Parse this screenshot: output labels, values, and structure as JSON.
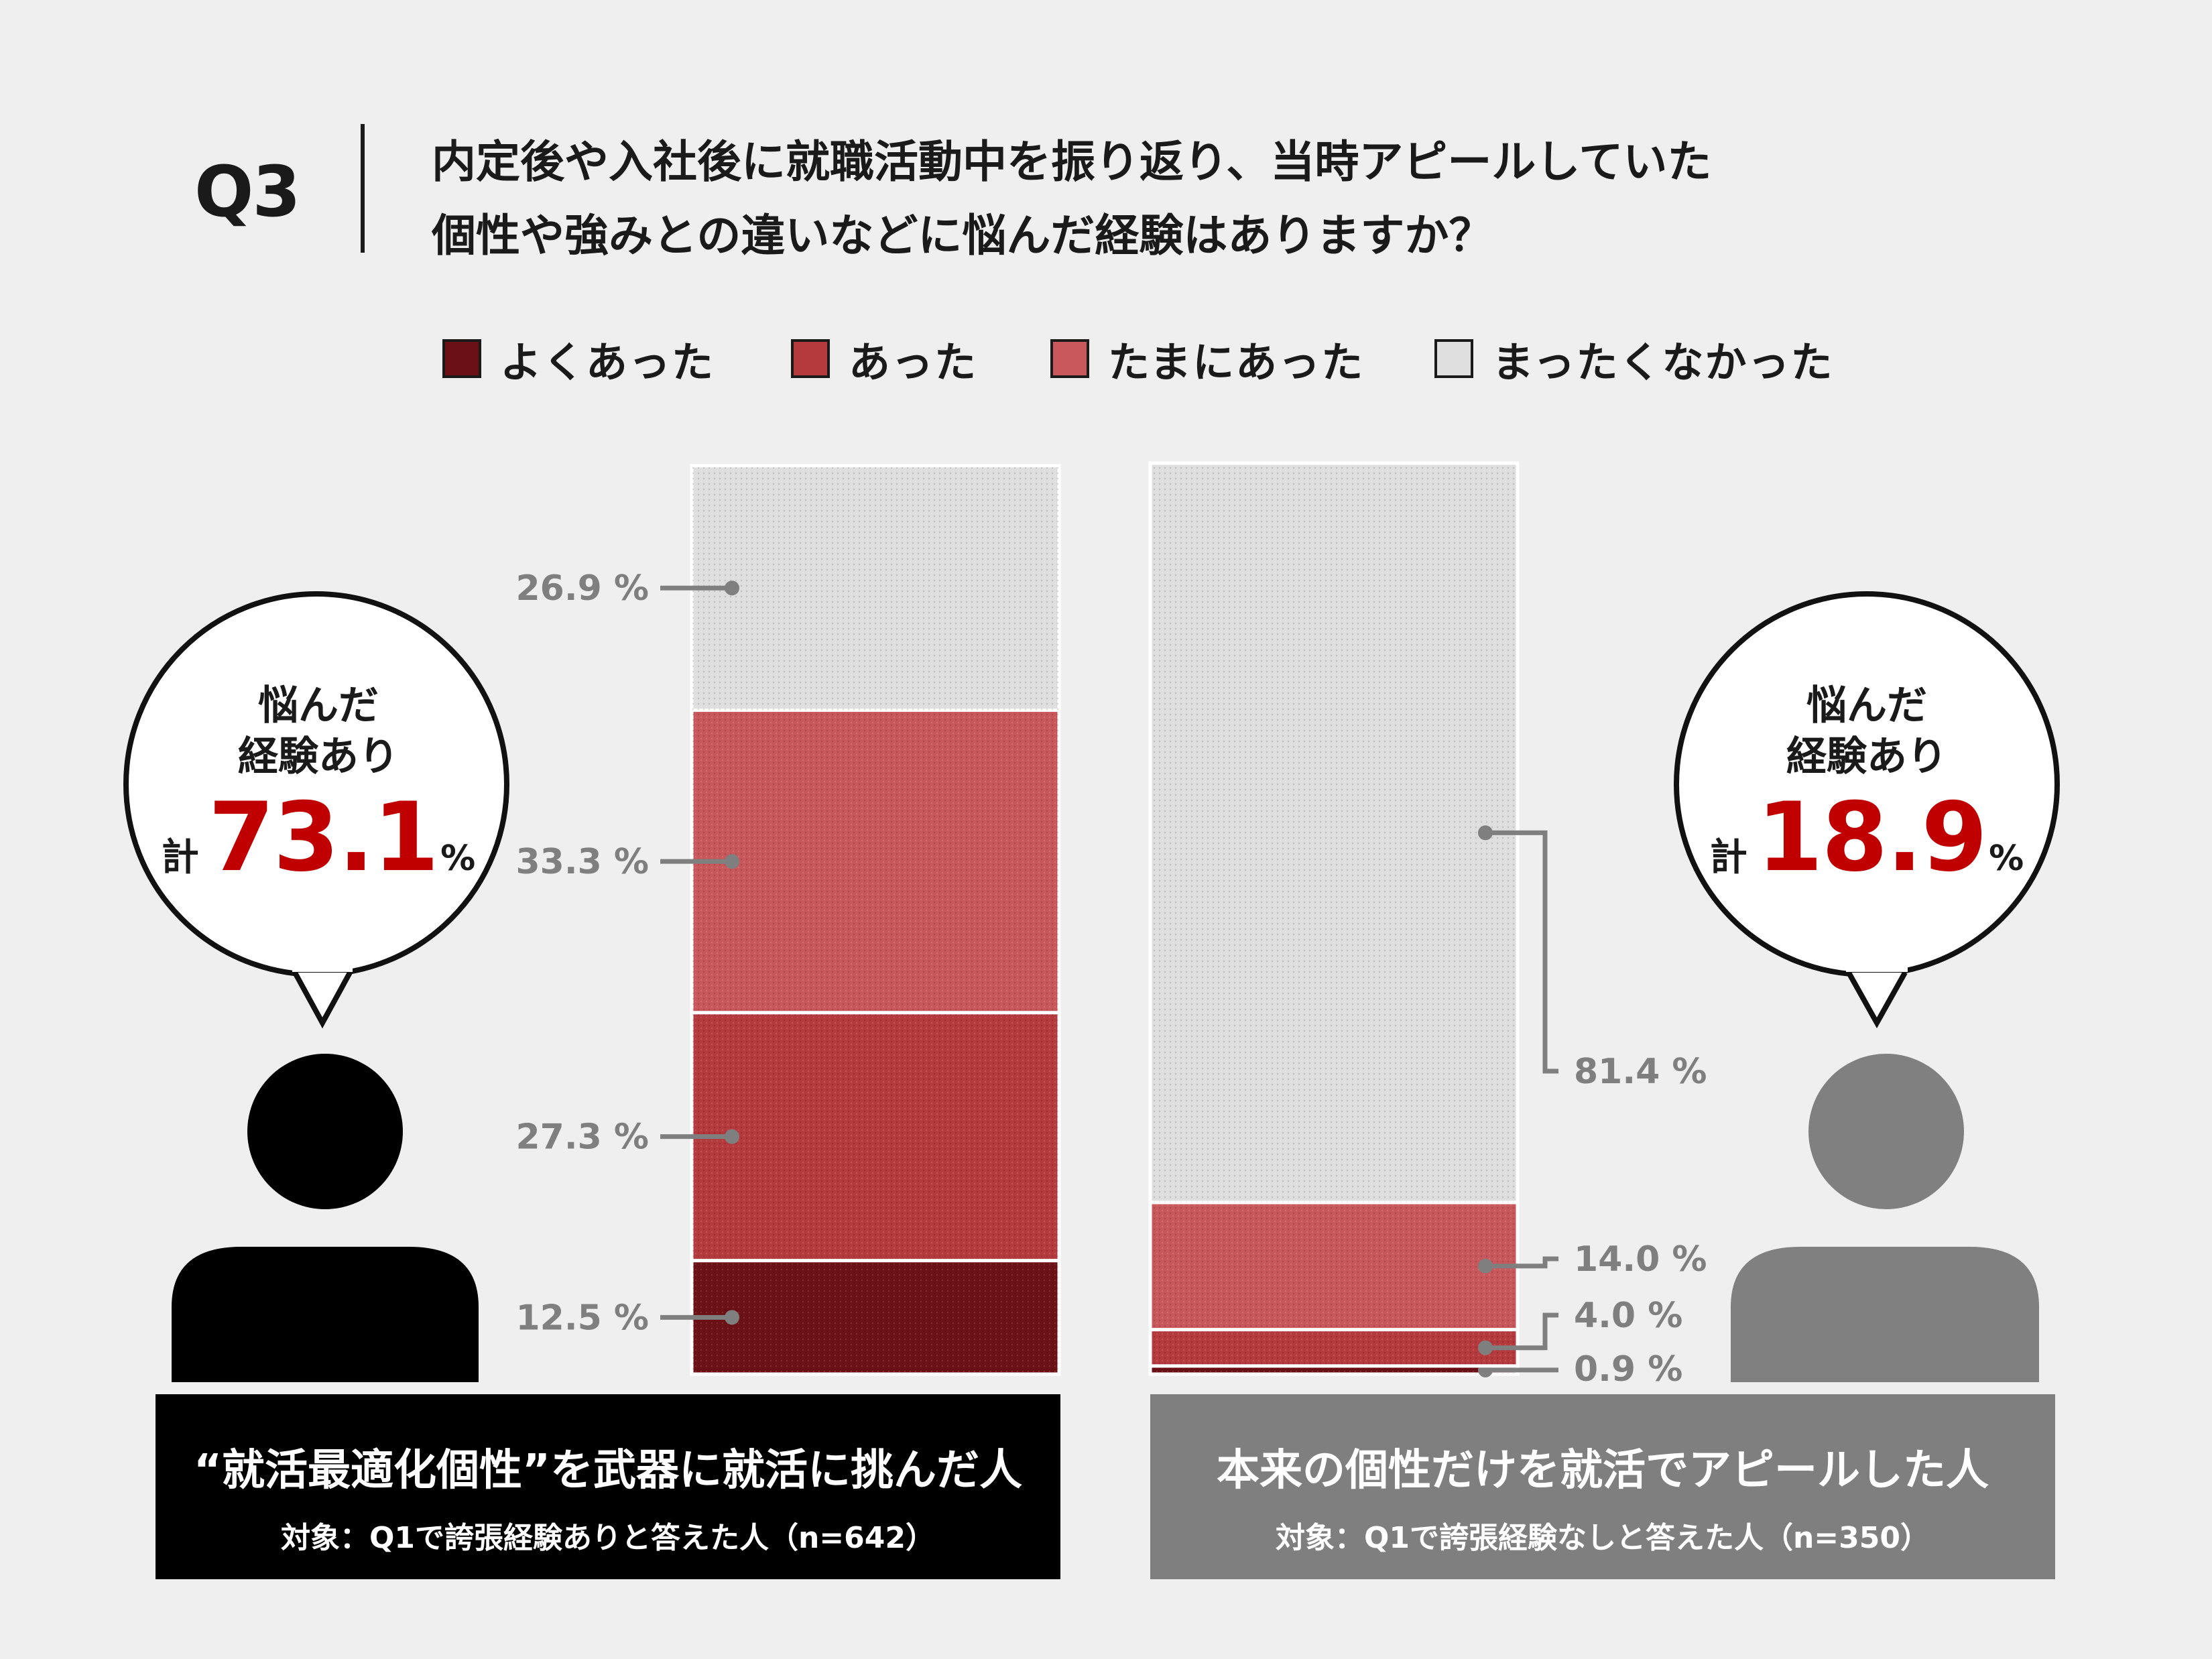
{
  "question": {
    "label": "Q3",
    "line1": "内定後や入社後に就職活動中を振り返り、当時アピールしていた",
    "line2": "個性や強みとの違いなどに悩んだ経験はありますか？"
  },
  "legend": [
    {
      "label": "よくあった",
      "color": "#6b1014"
    },
    {
      "label": "あった",
      "color": "#b43a3d"
    },
    {
      "label": "たまにあった",
      "color": "#c8585b"
    },
    {
      "label": "まったくなかった",
      "color": "#dedede"
    }
  ],
  "colors": {
    "accent": "#c00000",
    "label_gray": "#7f7f7f",
    "left_panel": "#000000",
    "right_panel": "#7f7f7f",
    "background": "#efefef"
  },
  "chart_data": {
    "type": "bar",
    "stacked": true,
    "categories": [
      "“就活最適化個性”を武器に就活に挑んだ人",
      "本来の個性だけを就活でアピールした人"
    ],
    "series": [
      {
        "name": "よくあった",
        "values": [
          12.5,
          0.9
        ],
        "labels": [
          "12.5 %",
          "0.9 %"
        ]
      },
      {
        "name": "あった",
        "values": [
          27.3,
          4.0
        ],
        "labels": [
          "27.3 %",
          "4.0 %"
        ]
      },
      {
        "name": "たまにあった",
        "values": [
          33.3,
          14.0
        ],
        "labels": [
          "33.3 %",
          "14.0 %"
        ]
      },
      {
        "name": "まったくなかった",
        "values": [
          26.9,
          81.4
        ],
        "labels": [
          "26.9 %",
          "81.4 %"
        ]
      }
    ],
    "ylim": [
      0,
      100
    ],
    "legend_position": "top",
    "grid": false
  },
  "left_group": {
    "bubble_line1": "悩んだ",
    "bubble_line2": "経験あり",
    "total_prefix": "計",
    "total_value": "73.1",
    "total_unit": "%",
    "title": "“就活最適化個性”を武器に就活に挑んだ人",
    "subtitle": "対象：Q1で誇張経験ありと答えた人（n=642）"
  },
  "right_group": {
    "bubble_line1": "悩んだ",
    "bubble_line2": "経験あり",
    "total_prefix": "計",
    "total_value": "18.9",
    "total_unit": "%",
    "title": "本来の個性だけを就活でアピールした人",
    "subtitle": "対象：Q1で誇張経験なしと答えた人（n=350）"
  }
}
